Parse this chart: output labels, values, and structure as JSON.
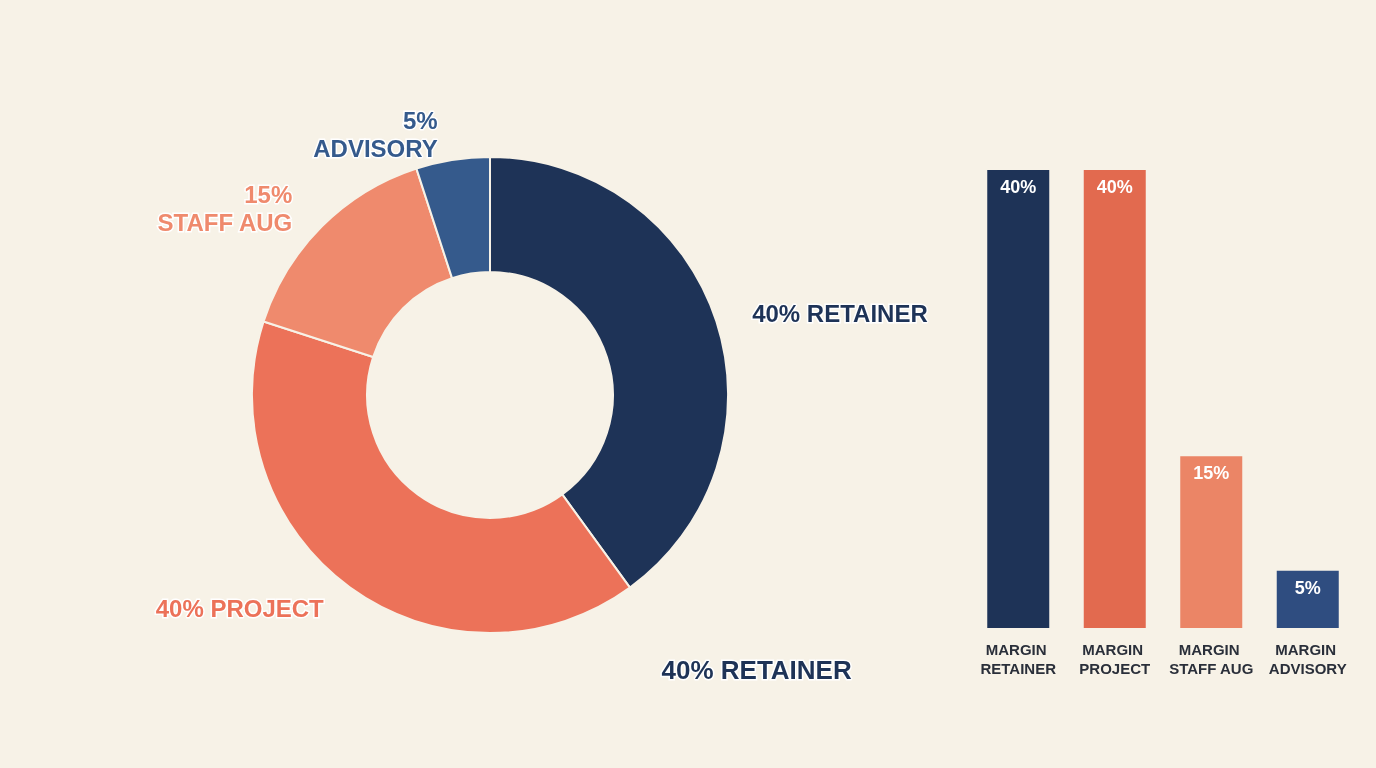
{
  "chart_data": [
    {
      "type": "donut",
      "categories": [
        "RETAINER",
        "PROJECT",
        "STAFF AUG",
        "ADVISORY"
      ],
      "values": [
        40,
        40,
        15,
        5
      ],
      "colors": [
        "#1e3357",
        "#ec7259",
        "#ef8a6d",
        "#355a8c"
      ],
      "value_labels": [
        "40%",
        "40%",
        "15%",
        "5%"
      ],
      "annotations": [
        "40% RETAINER"
      ]
    },
    {
      "type": "bar",
      "categories": [
        "MARGIN RETAINER",
        "MARGIN PROJECT",
        "MARGIN STAFF AUG",
        "MARGIN ADVISORY"
      ],
      "values": [
        40,
        40,
        15,
        5
      ],
      "colors": [
        "#1e3357",
        "#e26a4f",
        "#eb8566",
        "#2f4d80"
      ],
      "value_labels": [
        "40%",
        "40%",
        "15%",
        "5%"
      ]
    }
  ]
}
